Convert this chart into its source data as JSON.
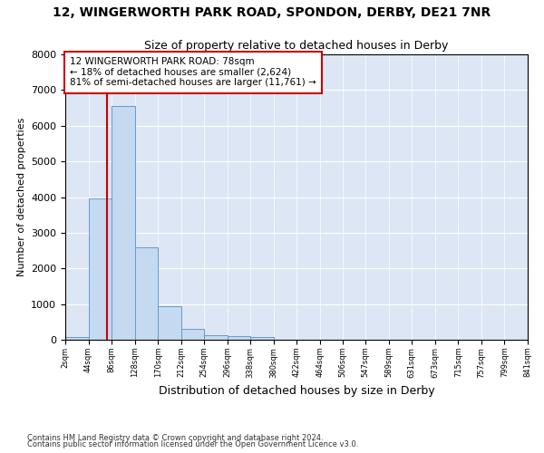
{
  "title1": "12, WINGERWORTH PARK ROAD, SPONDON, DERBY, DE21 7NR",
  "title2": "Size of property relative to detached houses in Derby",
  "xlabel": "Distribution of detached houses by size in Derby",
  "ylabel": "Number of detached properties",
  "bar_color": "#c5d9f1",
  "bar_edge_color": "#6699cc",
  "background_color": "#dce6f5",
  "grid_color": "#ffffff",
  "annotation_box_color": "#cc0000",
  "property_line_color": "#cc0000",
  "annotation_line1": "12 WINGERWORTH PARK ROAD: 78sqm",
  "annotation_line2": "← 18% of detached houses are smaller (2,624)",
  "annotation_line3": "81% of semi-detached houses are larger (11,761) →",
  "property_size_sqm": 78,
  "bin_edges": [
    2,
    44,
    86,
    128,
    170,
    212,
    254,
    296,
    338,
    380,
    422,
    464,
    506,
    547,
    589,
    631,
    673,
    715,
    757,
    799,
    841
  ],
  "bin_counts": [
    75,
    3960,
    6550,
    2600,
    950,
    310,
    115,
    110,
    80,
    0,
    0,
    0,
    0,
    0,
    0,
    0,
    0,
    0,
    0,
    0
  ],
  "ylim": [
    0,
    8000
  ],
  "yticks": [
    0,
    1000,
    2000,
    3000,
    4000,
    5000,
    6000,
    7000,
    8000
  ],
  "tick_labels": [
    "2sqm",
    "44sqm",
    "86sqm",
    "128sqm",
    "170sqm",
    "212sqm",
    "254sqm",
    "296sqm",
    "338sqm",
    "380sqm",
    "422sqm",
    "464sqm",
    "506sqm",
    "547sqm",
    "589sqm",
    "631sqm",
    "673sqm",
    "715sqm",
    "757sqm",
    "799sqm",
    "841sqm"
  ],
  "footnote1": "Contains HM Land Registry data © Crown copyright and database right 2024.",
  "footnote2": "Contains public sector information licensed under the Open Government Licence v3.0."
}
